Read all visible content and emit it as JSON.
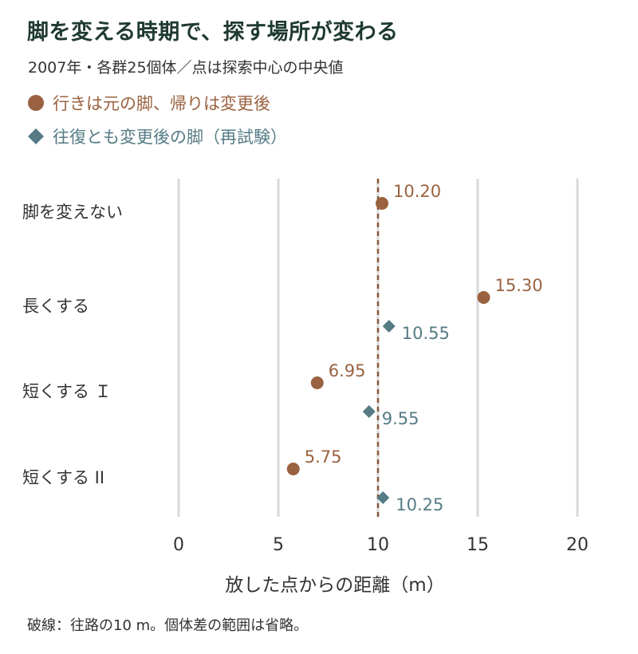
{
  "chart_data": {
    "type": "scatter",
    "title": "脚を変える時期で、探す場所が変わる",
    "subtitle": "2007年・各群25個体／点は探索中心の中央値",
    "xlabel": "放した点からの距離（m）",
    "xlim": [
      0,
      20
    ],
    "xticks": [
      "0",
      "5",
      "10",
      "15",
      "20"
    ],
    "xtick_values": [
      0,
      5,
      10,
      15,
      20
    ],
    "grid": "vertical",
    "categories": [
      "脚を変えない",
      "長くする",
      "短くする Ｉ",
      "短くする II"
    ],
    "series": [
      {
        "name": "行きは元の脚、帰りは変更後",
        "marker": "circle",
        "color": "#9a6240",
        "values": [
          10.2,
          15.3,
          6.95,
          5.75
        ],
        "labels": [
          "10.20",
          "15.30",
          "6.95",
          "5.75"
        ]
      },
      {
        "name": "往復とも変更後の脚（再試験）",
        "marker": "diamond",
        "color": "#557b84",
        "values": [
          null,
          10.55,
          9.55,
          10.25
        ],
        "labels": [
          "",
          "10.55",
          "9.55",
          "10.25"
        ]
      }
    ],
    "reference_line": {
      "value": 10,
      "color": "#8a5a3c"
    },
    "caption": "破線：往路の10 m。個体差の範囲は省略。"
  }
}
